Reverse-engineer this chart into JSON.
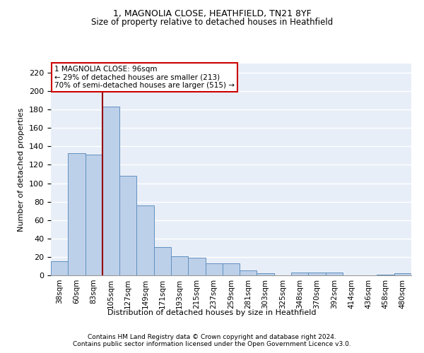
{
  "title1": "1, MAGNOLIA CLOSE, HEATHFIELD, TN21 8YF",
  "title2": "Size of property relative to detached houses in Heathfield",
  "xlabel": "Distribution of detached houses by size in Heathfield",
  "ylabel": "Number of detached properties",
  "categories": [
    "38sqm",
    "60sqm",
    "83sqm",
    "105sqm",
    "127sqm",
    "149sqm",
    "171sqm",
    "193sqm",
    "215sqm",
    "237sqm",
    "259sqm",
    "281sqm",
    "303sqm",
    "325sqm",
    "348sqm",
    "370sqm",
    "392sqm",
    "414sqm",
    "436sqm",
    "458sqm",
    "480sqm"
  ],
  "values": [
    15,
    133,
    131,
    183,
    108,
    76,
    31,
    21,
    19,
    13,
    13,
    5,
    2,
    0,
    3,
    3,
    3,
    0,
    0,
    1,
    2
  ],
  "bar_color": "#bdd0e9",
  "bar_edge_color": "#6090c0",
  "bg_color": "#e8eef8",
  "grid_color": "#ffffff",
  "vline_x": 2.5,
  "vline_color": "#990000",
  "annotation_line1": "1 MAGNOLIA CLOSE: 96sqm",
  "annotation_line2": "← 29% of detached houses are smaller (213)",
  "annotation_line3": "70% of semi-detached houses are larger (515) →",
  "annotation_box_color": "#cc0000",
  "ylim": [
    0,
    230
  ],
  "yticks": [
    0,
    20,
    40,
    60,
    80,
    100,
    120,
    140,
    160,
    180,
    200,
    220
  ],
  "footer1": "Contains HM Land Registry data © Crown copyright and database right 2024.",
  "footer2": "Contains public sector information licensed under the Open Government Licence v3.0.",
  "title1_fontsize": 9,
  "title2_fontsize": 8.5,
  "ylabel_fontsize": 8,
  "xlabel_fontsize": 8,
  "tick_fontsize": 8,
  "xtick_fontsize": 7.5,
  "footer_fontsize": 6.5
}
